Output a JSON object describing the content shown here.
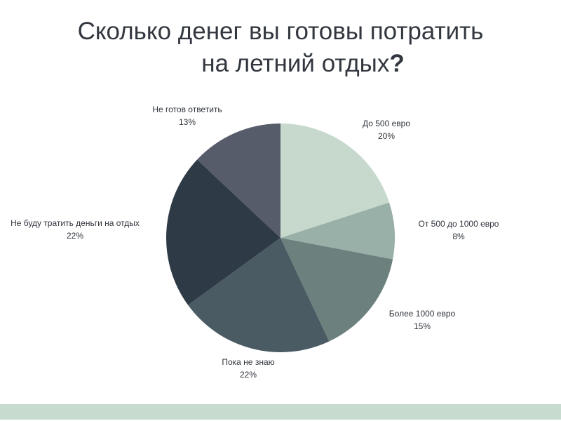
{
  "title": {
    "line1": "Сколько денег вы готовы потратить",
    "line2": "на летний отдых",
    "qmark": "?"
  },
  "chart_data": {
    "type": "pie",
    "title": "Сколько денег вы готовы потратить на летний отдых?",
    "start": "12 o'clock, clockwise",
    "slices": [
      {
        "label": "До 500 евро",
        "value": 20,
        "display": "20%",
        "color": "#c6d9cc"
      },
      {
        "label": "От 500 до 1000 евро",
        "value": 8,
        "display": "8%",
        "color": "#99b0a8"
      },
      {
        "label": "Более 1000 евро",
        "value": 15,
        "display": "15%",
        "color": "#6c817e"
      },
      {
        "label": "Пока не знаю",
        "value": 22,
        "display": "22%",
        "color": "#4b5b63"
      },
      {
        "label": "Не буду тратить деньги на отдых",
        "value": 22,
        "display": "22%",
        "color": "#2e3a45"
      },
      {
        "label": "Не готов ответить",
        "value": 13,
        "display": "13%",
        "color": "#575c6b"
      }
    ]
  },
  "footer": {
    "band_color": "#c7dbcf"
  }
}
